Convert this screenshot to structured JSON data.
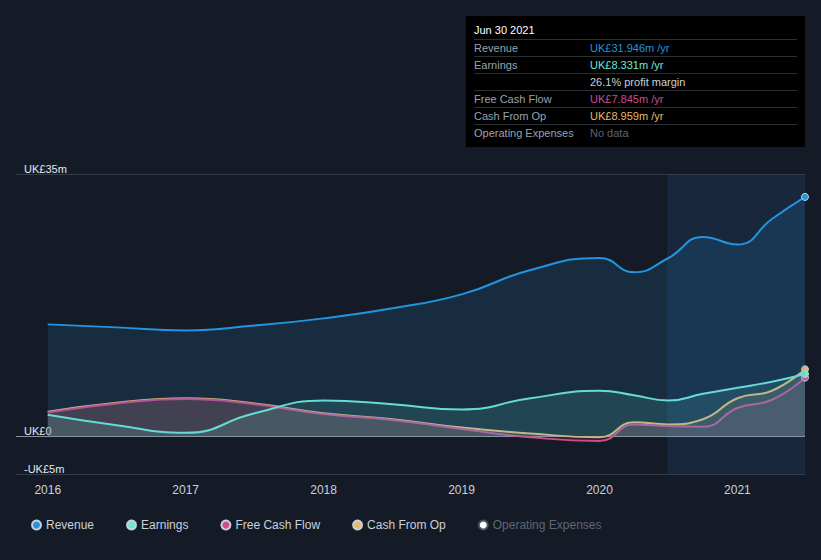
{
  "chart_data": {
    "type": "line",
    "x": [
      2016,
      2016.5,
      2017,
      2017.5,
      2018,
      2018.5,
      2019,
      2019.5,
      2020,
      2020.25,
      2020.5,
      2020.75,
      2021,
      2021.25,
      2021.49
    ],
    "xlim": [
      2015.77,
      2021.49
    ],
    "xticks": [
      2016,
      2017,
      2018,
      2019,
      2020,
      2021
    ],
    "ylim": [
      -5,
      35
    ],
    "yticks": [
      {
        "value": -5,
        "label": "-UK£5m"
      },
      {
        "value": 0,
        "label": "UK£0"
      },
      {
        "value": 35,
        "label": "UK£35m"
      }
    ],
    "series": [
      {
        "name": "Revenue",
        "color": "#2394df",
        "values": [
          14.95,
          14.55,
          14.15,
          14.8,
          15.75,
          17.1,
          18.95,
          22.2,
          23.8,
          21.9,
          23.8,
          26.6,
          25.6,
          29.0,
          31.946
        ]
      },
      {
        "name": "Earnings",
        "color": "#71e7d6",
        "values": [
          2.9,
          1.5,
          0.5,
          3.1,
          4.8,
          4.3,
          3.6,
          5.1,
          6.1,
          5.5,
          4.8,
          5.7,
          6.5,
          7.3,
          8.331
        ]
      },
      {
        "name": "Free Cash Flow",
        "color": "#d04a8f",
        "values": [
          3.2,
          4.4,
          5.0,
          4.3,
          3.0,
          2.2,
          1.0,
          -0.1,
          -0.6,
          1.6,
          1.4,
          1.3,
          3.8,
          4.9,
          7.845
        ]
      },
      {
        "name": "Cash From Op",
        "color": "#e9b86b",
        "values": [
          3.3,
          4.5,
          5.1,
          4.4,
          3.1,
          2.3,
          1.2,
          0.4,
          -0.1,
          1.9,
          1.6,
          2.3,
          5.1,
          6.1,
          8.959
        ]
      },
      {
        "name": "Operating Expenses",
        "color": "#4a5160",
        "marker": "hollow",
        "values": [
          null,
          null,
          null,
          null,
          null,
          null,
          null,
          null,
          null,
          null,
          null,
          null,
          null,
          null,
          null
        ]
      }
    ],
    "grid": true,
    "legend": "bottom-left",
    "shaded_range": [
      2020.49,
      2021.49
    ],
    "annotations": {
      "title": "Jun 30 2021",
      "rows": [
        {
          "label": "Revenue",
          "value": "UK£31.946m /yr"
        },
        {
          "label": "Earnings",
          "value": "UK£8.331m /yr"
        },
        {
          "value": "26.1% profit margin"
        },
        {
          "label": "Free Cash Flow",
          "value": "UK£7.845m /yr"
        },
        {
          "label": "Cash From Op",
          "value": "UK£8.959m /yr"
        },
        {
          "label": "Operating Expenses",
          "value": "No data"
        }
      ]
    }
  }
}
